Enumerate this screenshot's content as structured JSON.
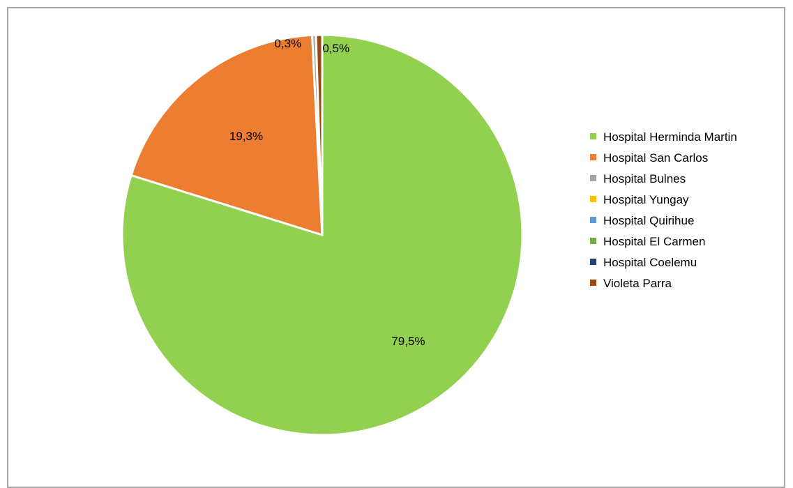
{
  "chart_data": {
    "type": "pie",
    "title": "",
    "start_angle_deg": 0,
    "direction": "clockwise",
    "slices": [
      {
        "label": "Hospital Herminda Martin",
        "value": 79.5,
        "data_label": "79,5%",
        "color": "#92d050",
        "show_label": true
      },
      {
        "label": "Hospital San Carlos",
        "value": 19.3,
        "data_label": "19,3%",
        "color": "#ed7d31",
        "show_label": true
      },
      {
        "label": "Hospital Bulnes",
        "value": 0.3,
        "data_label": "0,3%",
        "color": "#a5a5a5",
        "show_label": true
      },
      {
        "label": "Hospital Yungay",
        "value": 0.0,
        "data_label": "",
        "color": "#ffc000",
        "show_label": false
      },
      {
        "label": "Hospital Quirihue",
        "value": 0.0,
        "data_label": "",
        "color": "#5b9bd5",
        "show_label": false
      },
      {
        "label": "Hospital El Carmen",
        "value": 0.0,
        "data_label": "",
        "color": "#70ad47",
        "show_label": false
      },
      {
        "label": "Hospital Coelemu",
        "value": 0.0,
        "data_label": "",
        "color": "#264478",
        "show_label": false
      },
      {
        "label": "Violeta Parra",
        "value": 0.5,
        "data_label": "0,5%",
        "color": "#9e480e",
        "show_label": true
      }
    ],
    "legend_position": "right"
  },
  "legend": {
    "items": [
      {
        "label": "Hospital Herminda Martin",
        "color": "#92d050"
      },
      {
        "label": "Hospital San Carlos",
        "color": "#ed7d31"
      },
      {
        "label": "Hospital Bulnes",
        "color": "#a5a5a5"
      },
      {
        "label": "Hospital Yungay",
        "color": "#ffc000"
      },
      {
        "label": "Hospital Quirihue",
        "color": "#5b9bd5"
      },
      {
        "label": "Hospital El Carmen",
        "color": "#70ad47"
      },
      {
        "label": "Hospital Coelemu",
        "color": "#264478"
      },
      {
        "label": "Violeta Parra",
        "color": "#9e480e"
      }
    ]
  }
}
